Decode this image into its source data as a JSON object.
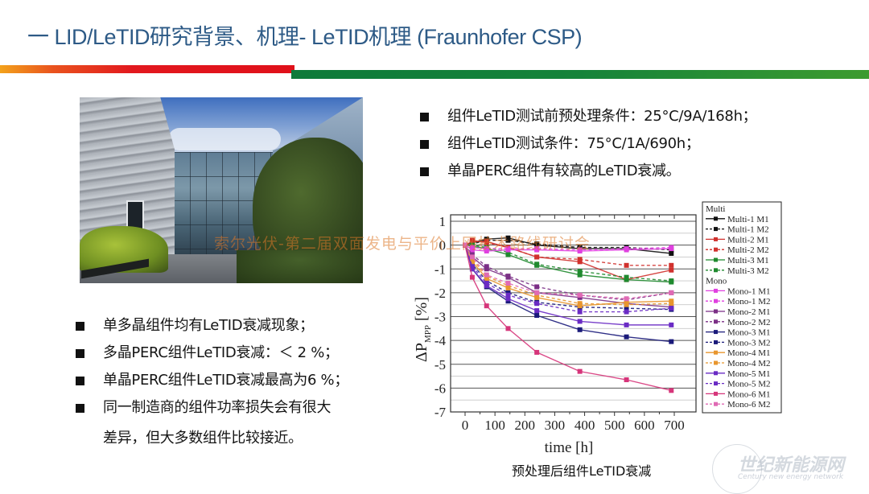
{
  "slide": {
    "title": "一 LID/LeTID研究背景、机理- LeTID机理 (Fraunhofer CSP)",
    "colors": {
      "title": "#2d5a86",
      "band_red": "#e2181e",
      "band_orange": "#f3a21b",
      "band_green": "#15833a"
    }
  },
  "photo": {
    "description": "Fraunhofer CSP building courtyard"
  },
  "bullets_right": [
    "组件LeTID测试前预处理条件：25°C/9A/168h；",
    "组件LeTID测试条件：75°C/1A/690h；",
    "单晶PERC组件有较高的LeTID衰减。"
  ],
  "bullets_left": [
    "单多晶组件均有LeTID衰减现象；",
    "多晶PERC组件LeTID衰减：＜ 2 %；",
    "单晶PERC组件LeTID衰减最高为6 %；",
    "同一制造商的组件功率损失会有很大"
  ],
  "bullets_left_continuation": "差异，但大多数组件比较接近。",
  "watermarks": {
    "middle": "索尔光伏-第二届双面发电与平价上网技术路线研讨会",
    "logo_cn": "世纪新能源网",
    "logo_en": "Century new energy network"
  },
  "chart_caption": "预处理后组件LeTID衰减",
  "chart_data": {
    "type": "line",
    "title": "",
    "xlabel": "time [h]",
    "ylabel": "ΔP_MPP [%]",
    "ylabel_main": "ΔP",
    "ylabel_sub": "MPP",
    "ylabel_unit": "[%]",
    "xlim": [
      -40,
      760
    ],
    "ylim": [
      -7,
      1
    ],
    "xticks": [
      0,
      100,
      200,
      300,
      400,
      500,
      600,
      700
    ],
    "yticks": [
      1,
      0,
      -1,
      -2,
      -3,
      -4,
      -5,
      -6,
      -7
    ],
    "grid": true,
    "legend_position": "right",
    "legend_groups": [
      "Multi",
      "Mono"
    ],
    "x": [
      0,
      24,
      72,
      144,
      240,
      384,
      540,
      690
    ],
    "series": [
      {
        "name": "Multi-1 M1",
        "group": "Multi",
        "color": "#111111",
        "dash": false,
        "values": [
          0,
          0.1,
          0.25,
          0.3,
          0.0,
          -0.15,
          -0.15,
          -0.35
        ]
      },
      {
        "name": "Multi-1 M2",
        "group": "Multi",
        "color": "#111111",
        "dash": true,
        "values": [
          0,
          0.05,
          0.2,
          0.2,
          0.05,
          -0.1,
          -0.1,
          -0.2
        ]
      },
      {
        "name": "Multi-2 M1",
        "group": "Multi",
        "color": "#d0312d",
        "dash": false,
        "values": [
          0,
          0.15,
          0.15,
          -0.1,
          -0.5,
          -0.7,
          -1.45,
          -1.05
        ]
      },
      {
        "name": "Multi-2 M2",
        "group": "Multi",
        "color": "#d0312d",
        "dash": true,
        "values": [
          0,
          0.2,
          0.1,
          -0.1,
          -0.5,
          -0.6,
          -0.85,
          -0.85
        ]
      },
      {
        "name": "Multi-3 M1",
        "group": "Multi",
        "color": "#1f8a2e",
        "dash": false,
        "values": [
          0,
          -0.05,
          -0.15,
          -0.4,
          -0.85,
          -1.25,
          -1.45,
          -1.55
        ]
      },
      {
        "name": "Multi-3 M2",
        "group": "Multi",
        "color": "#1f8a2e",
        "dash": true,
        "values": [
          0,
          0.0,
          -0.1,
          -0.3,
          -0.8,
          -1.1,
          -1.35,
          -1.5
        ]
      },
      {
        "name": "Mono-1 M1",
        "group": "Mono",
        "color": "#e040e0",
        "dash": false,
        "values": [
          0,
          -0.2,
          -0.25,
          -0.2,
          -0.2,
          -0.25,
          -0.2,
          -0.15
        ]
      },
      {
        "name": "Mono-1 M2",
        "group": "Mono",
        "color": "#e040e0",
        "dash": true,
        "values": [
          0,
          -0.1,
          -0.15,
          -0.15,
          -0.15,
          -0.2,
          -0.15,
          -0.1
        ]
      },
      {
        "name": "Mono-2 M1",
        "group": "Mono",
        "color": "#7b2f86",
        "dash": false,
        "values": [
          0,
          -0.5,
          -1.0,
          -1.35,
          -2.0,
          -2.2,
          -2.45,
          -2.6
        ]
      },
      {
        "name": "Mono-2 M2",
        "group": "Mono",
        "color": "#7b2f86",
        "dash": true,
        "values": [
          0,
          -0.4,
          -0.9,
          -1.3,
          -1.75,
          -2.1,
          -2.3,
          -2.0
        ]
      },
      {
        "name": "Mono-3 M1",
        "group": "Mono",
        "color": "#1a1a7a",
        "dash": false,
        "values": [
          0,
          -1.0,
          -1.75,
          -2.35,
          -2.95,
          -3.55,
          -3.85,
          -4.05
        ]
      },
      {
        "name": "Mono-3 M2",
        "group": "Mono",
        "color": "#1a1a7a",
        "dash": true,
        "values": [
          0,
          -0.8,
          -1.5,
          -2.0,
          -2.4,
          -2.6,
          -2.65,
          -2.7
        ]
      },
      {
        "name": "Mono-4 M1",
        "group": "Mono",
        "color": "#e8962e",
        "dash": false,
        "values": [
          0,
          -0.7,
          -1.4,
          -1.8,
          -2.2,
          -2.55,
          -2.4,
          -2.35
        ]
      },
      {
        "name": "Mono-4 M2",
        "group": "Mono",
        "color": "#e8962e",
        "dash": true,
        "values": [
          0,
          -0.6,
          -1.3,
          -1.7,
          -2.1,
          -2.45,
          -2.5,
          -2.45
        ]
      },
      {
        "name": "Mono-5 M1",
        "group": "Mono",
        "color": "#6a2bc4",
        "dash": false,
        "values": [
          0,
          -1.0,
          -1.7,
          -2.25,
          -2.75,
          -3.2,
          -3.35,
          -3.35
        ]
      },
      {
        "name": "Mono-5 M2",
        "group": "Mono",
        "color": "#6a2bc4",
        "dash": true,
        "values": [
          0,
          -0.9,
          -1.6,
          -2.1,
          -2.45,
          -2.8,
          -2.8,
          -2.65
        ]
      },
      {
        "name": "Mono-6 M1",
        "group": "Mono",
        "color": "#d6357a",
        "dash": false,
        "values": [
          0,
          -1.35,
          -2.55,
          -3.5,
          -4.5,
          -5.3,
          -5.65,
          -6.1
        ]
      },
      {
        "name": "Mono-6 M2",
        "group": "Mono",
        "color": "#e06ab4",
        "dash": true,
        "values": [
          0,
          -0.5,
          -1.25,
          -1.6,
          -2.0,
          -2.1,
          -2.25,
          -2.0
        ]
      }
    ]
  }
}
